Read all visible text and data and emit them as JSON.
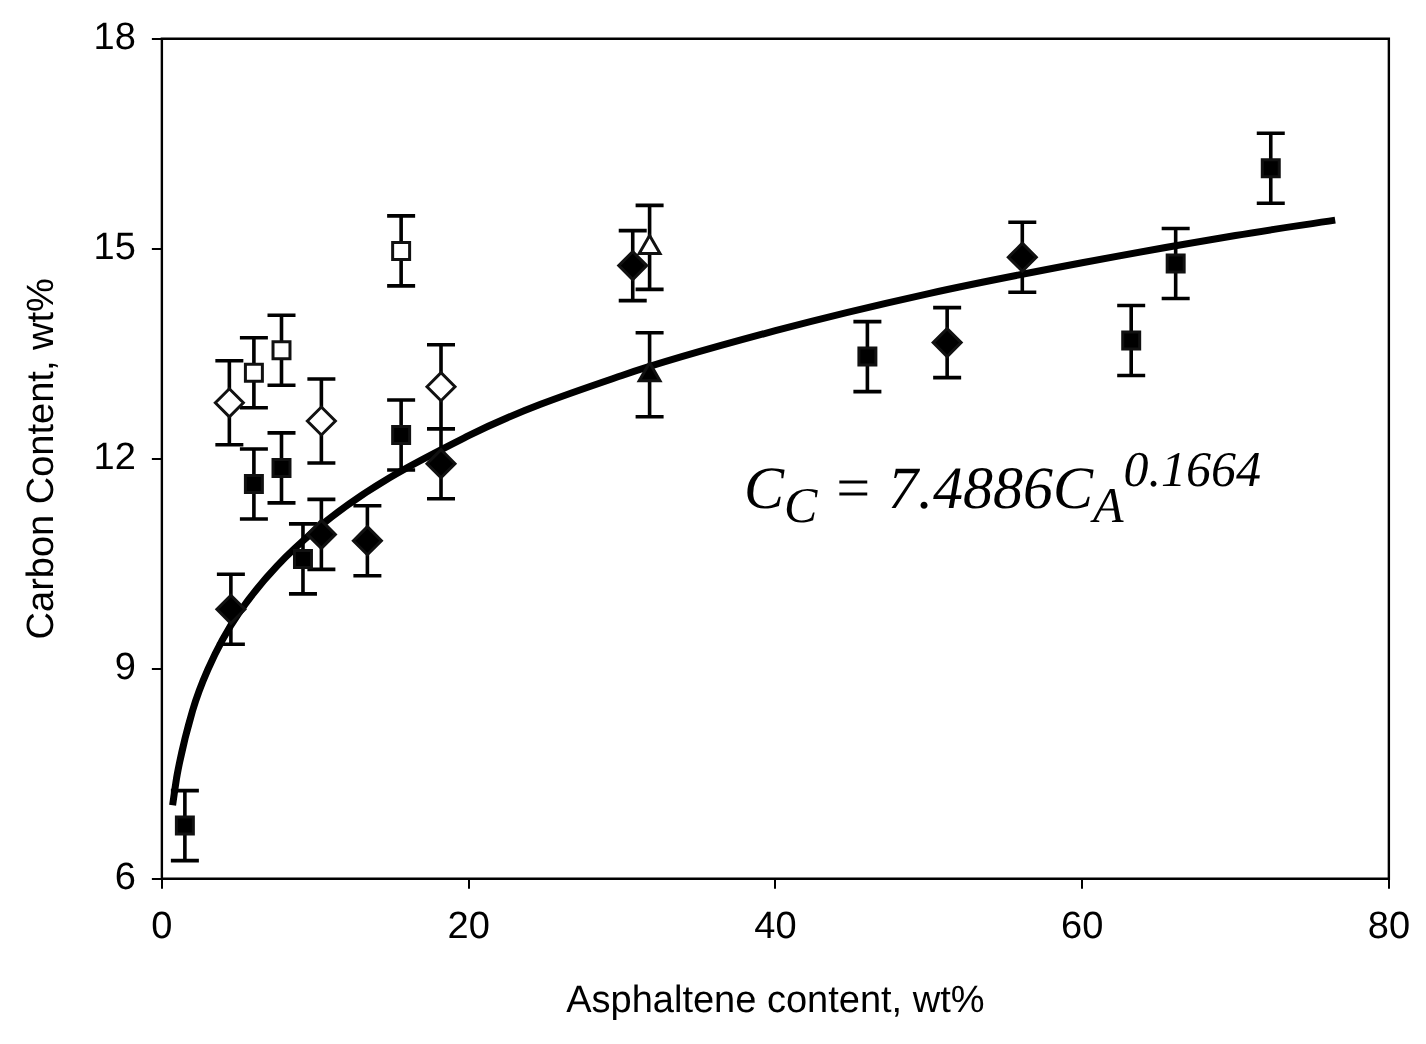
{
  "chart_data": {
    "type": "scatter",
    "xlabel": "Asphaltene content, wt%",
    "ylabel": "Carbon Content, wt%",
    "xlim": [
      0,
      80
    ],
    "xticks": [
      0,
      20,
      40,
      60,
      80
    ],
    "ylim": [
      6,
      18
    ],
    "yticks": [
      6,
      9,
      12,
      15,
      18
    ],
    "grid": false,
    "legend": false,
    "annotations": [
      "C$_{C}$ = 7.4886C$_{A}$$^{0.1664}$"
    ],
    "series": [
      {
        "marker": "square",
        "color": "#000000",
        "x": [
          1.5,
          6.0,
          7.8,
          9.2,
          15.6,
          46.0,
          63.2,
          66.1,
          72.3
        ],
        "values": [
          6.76,
          11.64,
          11.87,
          10.57,
          12.34,
          13.46,
          13.69,
          14.79,
          16.15
        ],
        "errors": [
          0.5,
          0.5,
          0.5,
          0.5,
          0.5,
          0.5,
          0.5,
          0.5,
          0.5
        ]
      },
      {
        "marker": "diamond",
        "color": "#000000",
        "x": [
          4.5,
          10.4,
          13.4,
          18.2,
          30.7,
          51.2,
          56.1
        ],
        "values": [
          9.85,
          10.92,
          10.83,
          11.93,
          14.76,
          13.66,
          14.88
        ],
        "errors": [
          0.5,
          0.5,
          0.5,
          0.5,
          0.5,
          0.5,
          0.5
        ]
      },
      {
        "marker": "triangle",
        "color": "#000000",
        "x": [
          31.8
        ],
        "values": [
          13.2
        ],
        "errors": [
          0.6
        ]
      },
      {
        "marker": "square",
        "color": "#ffffff",
        "x": [
          6.0,
          7.8,
          15.6
        ],
        "values": [
          13.23,
          13.55,
          14.97
        ],
        "errors": [
          0.5,
          0.5,
          0.5
        ]
      },
      {
        "marker": "diamond",
        "color": "#ffffff",
        "x": [
          4.4,
          10.4,
          18.2
        ],
        "values": [
          12.8,
          12.54,
          13.03
        ],
        "errors": [
          0.6,
          0.6,
          0.6
        ]
      },
      {
        "marker": "triangle",
        "color": "#ffffff",
        "x": [
          31.8
        ],
        "values": [
          15.02
        ],
        "errors": [
          0.6
        ]
      },
      {
        "type": "line",
        "marker": "none",
        "color": "#000000",
        "x": [
          0.7,
          1,
          2,
          3,
          5,
          10,
          20,
          30,
          40,
          50,
          60,
          70,
          76.5
        ],
        "values": [
          7.05,
          7.49,
          8.4,
          8.99,
          9.79,
          10.98,
          12.33,
          13.19,
          13.83,
          14.36,
          14.8,
          15.19,
          15.41
        ]
      }
    ]
  }
}
